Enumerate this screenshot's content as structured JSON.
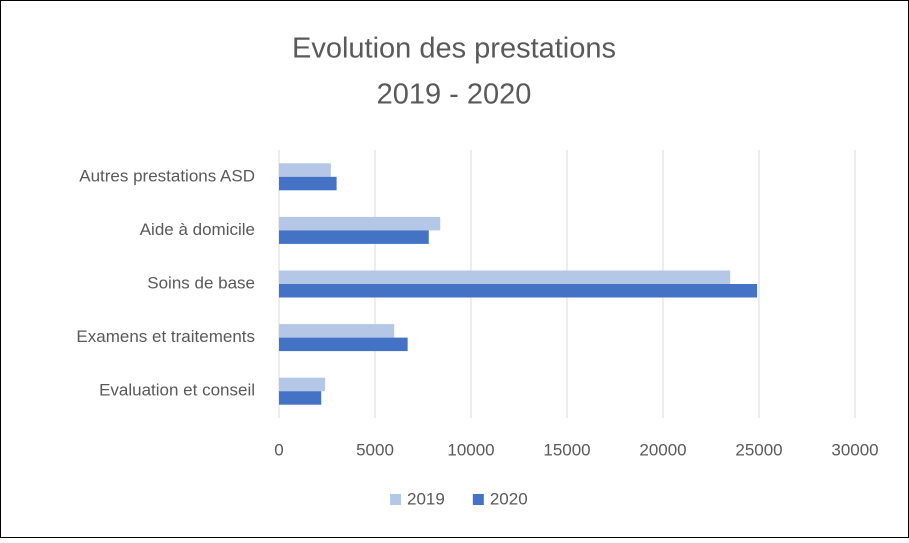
{
  "chart_data": {
    "type": "hbar",
    "title": "Evolution des prestations",
    "subtitle": "2019 - 2020",
    "categories": [
      "Autres prestations ASD",
      "Aide à domicile",
      "Soins de base",
      "Examens et traitements",
      "Evaluation et conseil"
    ],
    "series": [
      {
        "name": "2019",
        "color": "#b4c7e7",
        "values": [
          2700,
          8400,
          23500,
          6000,
          2400
        ]
      },
      {
        "name": "2020",
        "color": "#4472c4",
        "values": [
          3000,
          7800,
          24900,
          6700,
          2200
        ]
      }
    ],
    "xlim": [
      0,
      30000
    ],
    "xticks": [
      0,
      5000,
      10000,
      15000,
      20000,
      25000,
      30000
    ],
    "grid": true,
    "legend": "bottom"
  }
}
